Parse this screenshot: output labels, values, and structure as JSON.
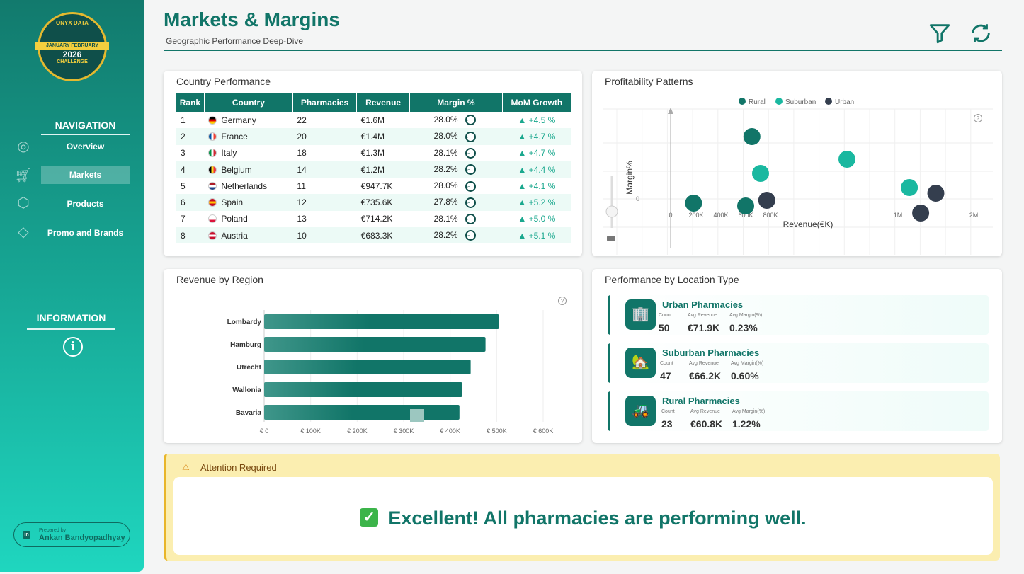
{
  "sidebar": {
    "logo": {
      "top": "ONYX DATA",
      "band": "JANUARY FEBRUARY",
      "year": "2026",
      "bottom": "CHALLENGE"
    },
    "nav_heading": "NAVIGATION",
    "items": [
      {
        "label": "Overview",
        "icon": "globe-icon"
      },
      {
        "label": "Markets",
        "icon": "cart-icon",
        "active": true
      },
      {
        "label": "Products",
        "icon": "box-icon"
      },
      {
        "label": "Promo and Brands",
        "icon": "tag-icon"
      }
    ],
    "info_heading": "INFORMATION",
    "info_icon": "i",
    "prepared_by_label": "Prepared by",
    "author": "Ankan Bandyopadhyay",
    "linkedin": "in"
  },
  "header": {
    "title": "Markets & Margins",
    "subtitle": "Geographic Performance Deep-Dive"
  },
  "country": {
    "title": "Country Performance",
    "columns": [
      "Rank",
      "Country",
      "Pharmacies",
      "Revenue",
      "Margin %",
      "MoM Growth"
    ],
    "rows": [
      {
        "rank": "1",
        "flag": [
          "#000",
          "#d00",
          "#fc0"
        ],
        "country": "Germany",
        "pharmacies": "22",
        "revenue": "€1.6M",
        "margin": "28.0%",
        "growth": "▲ +4.5 %"
      },
      {
        "rank": "2",
        "flag": [
          "#0055a4",
          "#fff",
          "#ef4135"
        ],
        "country": "France",
        "pharmacies": "20",
        "revenue": "€1.4M",
        "margin": "28.0%",
        "growth": "▲ +4.7 %"
      },
      {
        "rank": "3",
        "flag": [
          "#009246",
          "#fff",
          "#ce2b37"
        ],
        "country": "Italy",
        "pharmacies": "18",
        "revenue": "€1.3M",
        "margin": "28.1%",
        "growth": "▲ +4.7 %"
      },
      {
        "rank": "4",
        "flag": [
          "#000",
          "#fdda24",
          "#ef3340"
        ],
        "country": "Belgium",
        "pharmacies": "14",
        "revenue": "€1.2M",
        "margin": "28.2%",
        "growth": "▲ +4.4 %"
      },
      {
        "rank": "5",
        "flag": [
          "#ae1c28",
          "#fff",
          "#21468b"
        ],
        "country": "Netherlands",
        "pharmacies": "11",
        "revenue": "€947.7K",
        "margin": "28.0%",
        "growth": "▲ +4.1 %"
      },
      {
        "rank": "6",
        "flag": [
          "#c60b1e",
          "#ffc400",
          "#c60b1e"
        ],
        "country": "Spain",
        "pharmacies": "12",
        "revenue": "€735.6K",
        "margin": "27.8%",
        "growth": "▲ +5.2 %"
      },
      {
        "rank": "7",
        "flag": [
          "#fff",
          "#fff",
          "#dc143c"
        ],
        "country": "Poland",
        "pharmacies": "13",
        "revenue": "€714.2K",
        "margin": "28.1%",
        "growth": "▲ +5.0 %"
      },
      {
        "rank": "8",
        "flag": [
          "#c8102e",
          "#fff",
          "#c8102e"
        ],
        "country": "Austria",
        "pharmacies": "10",
        "revenue": "€683.3K",
        "margin": "28.2%",
        "growth": "▲ +5.1 %"
      }
    ]
  },
  "chart_data": [
    {
      "type": "scatter",
      "title": "Profitability Patterns",
      "xlabel": "Revenue(€K)",
      "ylabel": "Margin%",
      "x_ticks": [
        "0",
        "200K",
        "400K",
        "600K",
        "800K",
        "1M",
        "2M"
      ],
      "y_ticks": [
        "0"
      ],
      "legend": [
        {
          "name": "Rural",
          "color": "#117568"
        },
        {
          "name": "Suburban",
          "color": "#1ab8a0"
        },
        {
          "name": "Urban",
          "color": "#343e4e"
        }
      ],
      "legend_position": "top-center",
      "series": [
        {
          "name": "Rural",
          "points": [
            [
              650,
              2.2
            ],
            [
              180,
              -0.15
            ],
            [
              600,
              -0.25
            ]
          ]
        },
        {
          "name": "Suburban",
          "points": [
            [
              920,
              1.4
            ],
            [
              720,
              0.9
            ],
            [
              1150,
              0.4
            ]
          ]
        },
        {
          "name": "Urban",
          "points": [
            [
              770,
              -0.05
            ],
            [
              1500,
              0.2
            ],
            [
              1300,
              -0.5
            ]
          ]
        }
      ]
    },
    {
      "type": "bar",
      "title": "Revenue by Region",
      "orientation": "horizontal",
      "categories": [
        "Lombardy",
        "Hamburg",
        "Utrecht",
        "Wallonia",
        "Bavaria"
      ],
      "values": [
        505,
        476,
        444,
        426,
        420
      ],
      "x_ticks": [
        "€ 0",
        "€ 100K",
        "€ 200K",
        "€ 300K",
        "€ 400K",
        "€ 500K",
        "€ 600K"
      ],
      "xlim": [
        0,
        600
      ],
      "unit": "€K"
    }
  ],
  "location": {
    "title": "Performance by Location Type",
    "labels": {
      "count": "Count",
      "avg_revenue": "Avg Revenue",
      "avg_margin": "Avg Margin(%)"
    },
    "items": [
      {
        "name": "Urban Pharmacies",
        "icon": "🏢",
        "count": "50",
        "avg_revenue": "€71.9K",
        "avg_margin": "0.23%"
      },
      {
        "name": "Suburban Pharmacies",
        "icon": "🏡",
        "count": "47",
        "avg_revenue": "€66.2K",
        "avg_margin": "0.60%"
      },
      {
        "name": "Rural Pharmacies",
        "icon": "🚜",
        "count": "23",
        "avg_revenue": "€60.8K",
        "avg_margin": "1.22%"
      }
    ]
  },
  "alert": {
    "title": "Attention Required",
    "message": "Excellent! All pharmacies are performing well.",
    "check": "✓",
    "warn": "⚠"
  }
}
